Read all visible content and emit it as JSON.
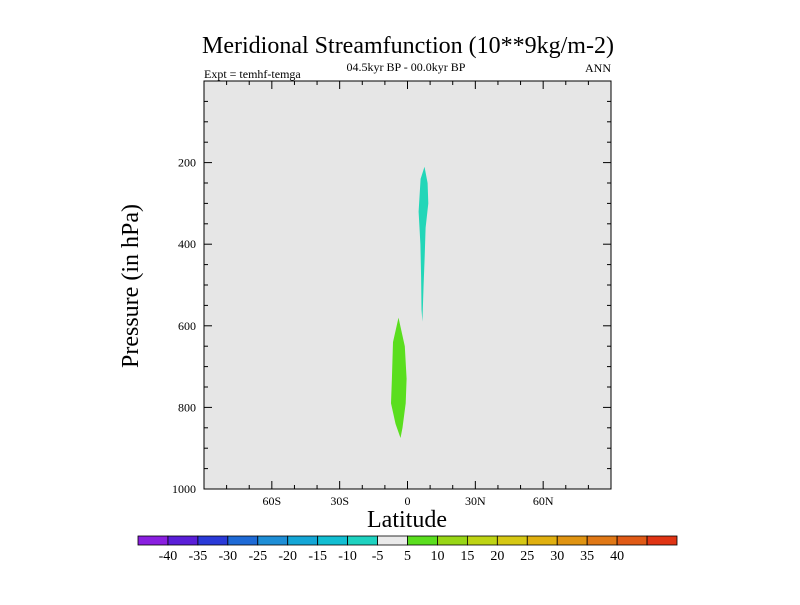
{
  "chart_data": {
    "type": "contour",
    "title": "Meridional Streamfunction (10**9kg/m-2)",
    "subtitle": "04.5kyr BP - 00.0kyr BP",
    "left_label": "Expt = temhf-temga",
    "right_label": "ANN",
    "xlabel": "Latitude",
    "ylabel": "Pressure (in hPa)",
    "xlim": [
      -90,
      90
    ],
    "ylim": [
      1000,
      0
    ],
    "x_ticks": [
      {
        "value": -60,
        "label": "60S"
      },
      {
        "value": -30,
        "label": "30S"
      },
      {
        "value": 0,
        "label": "0"
      },
      {
        "value": 30,
        "label": "30N"
      },
      {
        "value": 60,
        "label": "60N"
      }
    ],
    "y_ticks": [
      {
        "value": 200,
        "label": "200"
      },
      {
        "value": 400,
        "label": "400"
      },
      {
        "value": 600,
        "label": "600"
      },
      {
        "value": 800,
        "label": "800"
      },
      {
        "value": 1000,
        "label": "1000"
      }
    ],
    "background_color": "#e6e6e6",
    "regions": [
      {
        "name": "negative-cell",
        "level": "-10 to -5",
        "color": "#22d6b8",
        "points": [
          [
            7.5,
            210
          ],
          [
            8.9,
            250
          ],
          [
            9.2,
            300
          ],
          [
            8.0,
            360
          ],
          [
            7.6,
            430
          ],
          [
            7.1,
            500
          ],
          [
            6.6,
            590
          ],
          [
            6.2,
            560
          ],
          [
            6.0,
            480
          ],
          [
            5.7,
            400
          ],
          [
            4.9,
            320
          ],
          [
            5.8,
            240
          ]
        ]
      },
      {
        "name": "positive-cell",
        "level": "5 to 10",
        "color": "#5ade1e",
        "points": [
          [
            -4.0,
            580
          ],
          [
            -1.2,
            650
          ],
          [
            -0.4,
            730
          ],
          [
            -0.8,
            790
          ],
          [
            -2.2,
            850
          ],
          [
            -3.1,
            875
          ],
          [
            -5.3,
            840
          ],
          [
            -7.3,
            790
          ],
          [
            -6.9,
            730
          ],
          [
            -6.4,
            640
          ]
        ]
      }
    ],
    "colorbar": {
      "colors": [
        "#8a1fe0",
        "#5a1ed8",
        "#2a3ad8",
        "#1e6ad6",
        "#1e8ed6",
        "#14a6d6",
        "#12bed2",
        "#1ed2c0",
        "#eaeaea",
        "#5ade1e",
        "#98d616",
        "#bed414",
        "#d6c814",
        "#e0b010",
        "#e09412",
        "#e07816",
        "#e05a16",
        "#e03414"
      ],
      "labels": [
        "-40",
        "-35",
        "-30",
        "-25",
        "-20",
        "-15",
        "-10",
        "-5",
        "5",
        "10",
        "15",
        "20",
        "25",
        "30",
        "35",
        "40"
      ]
    }
  }
}
